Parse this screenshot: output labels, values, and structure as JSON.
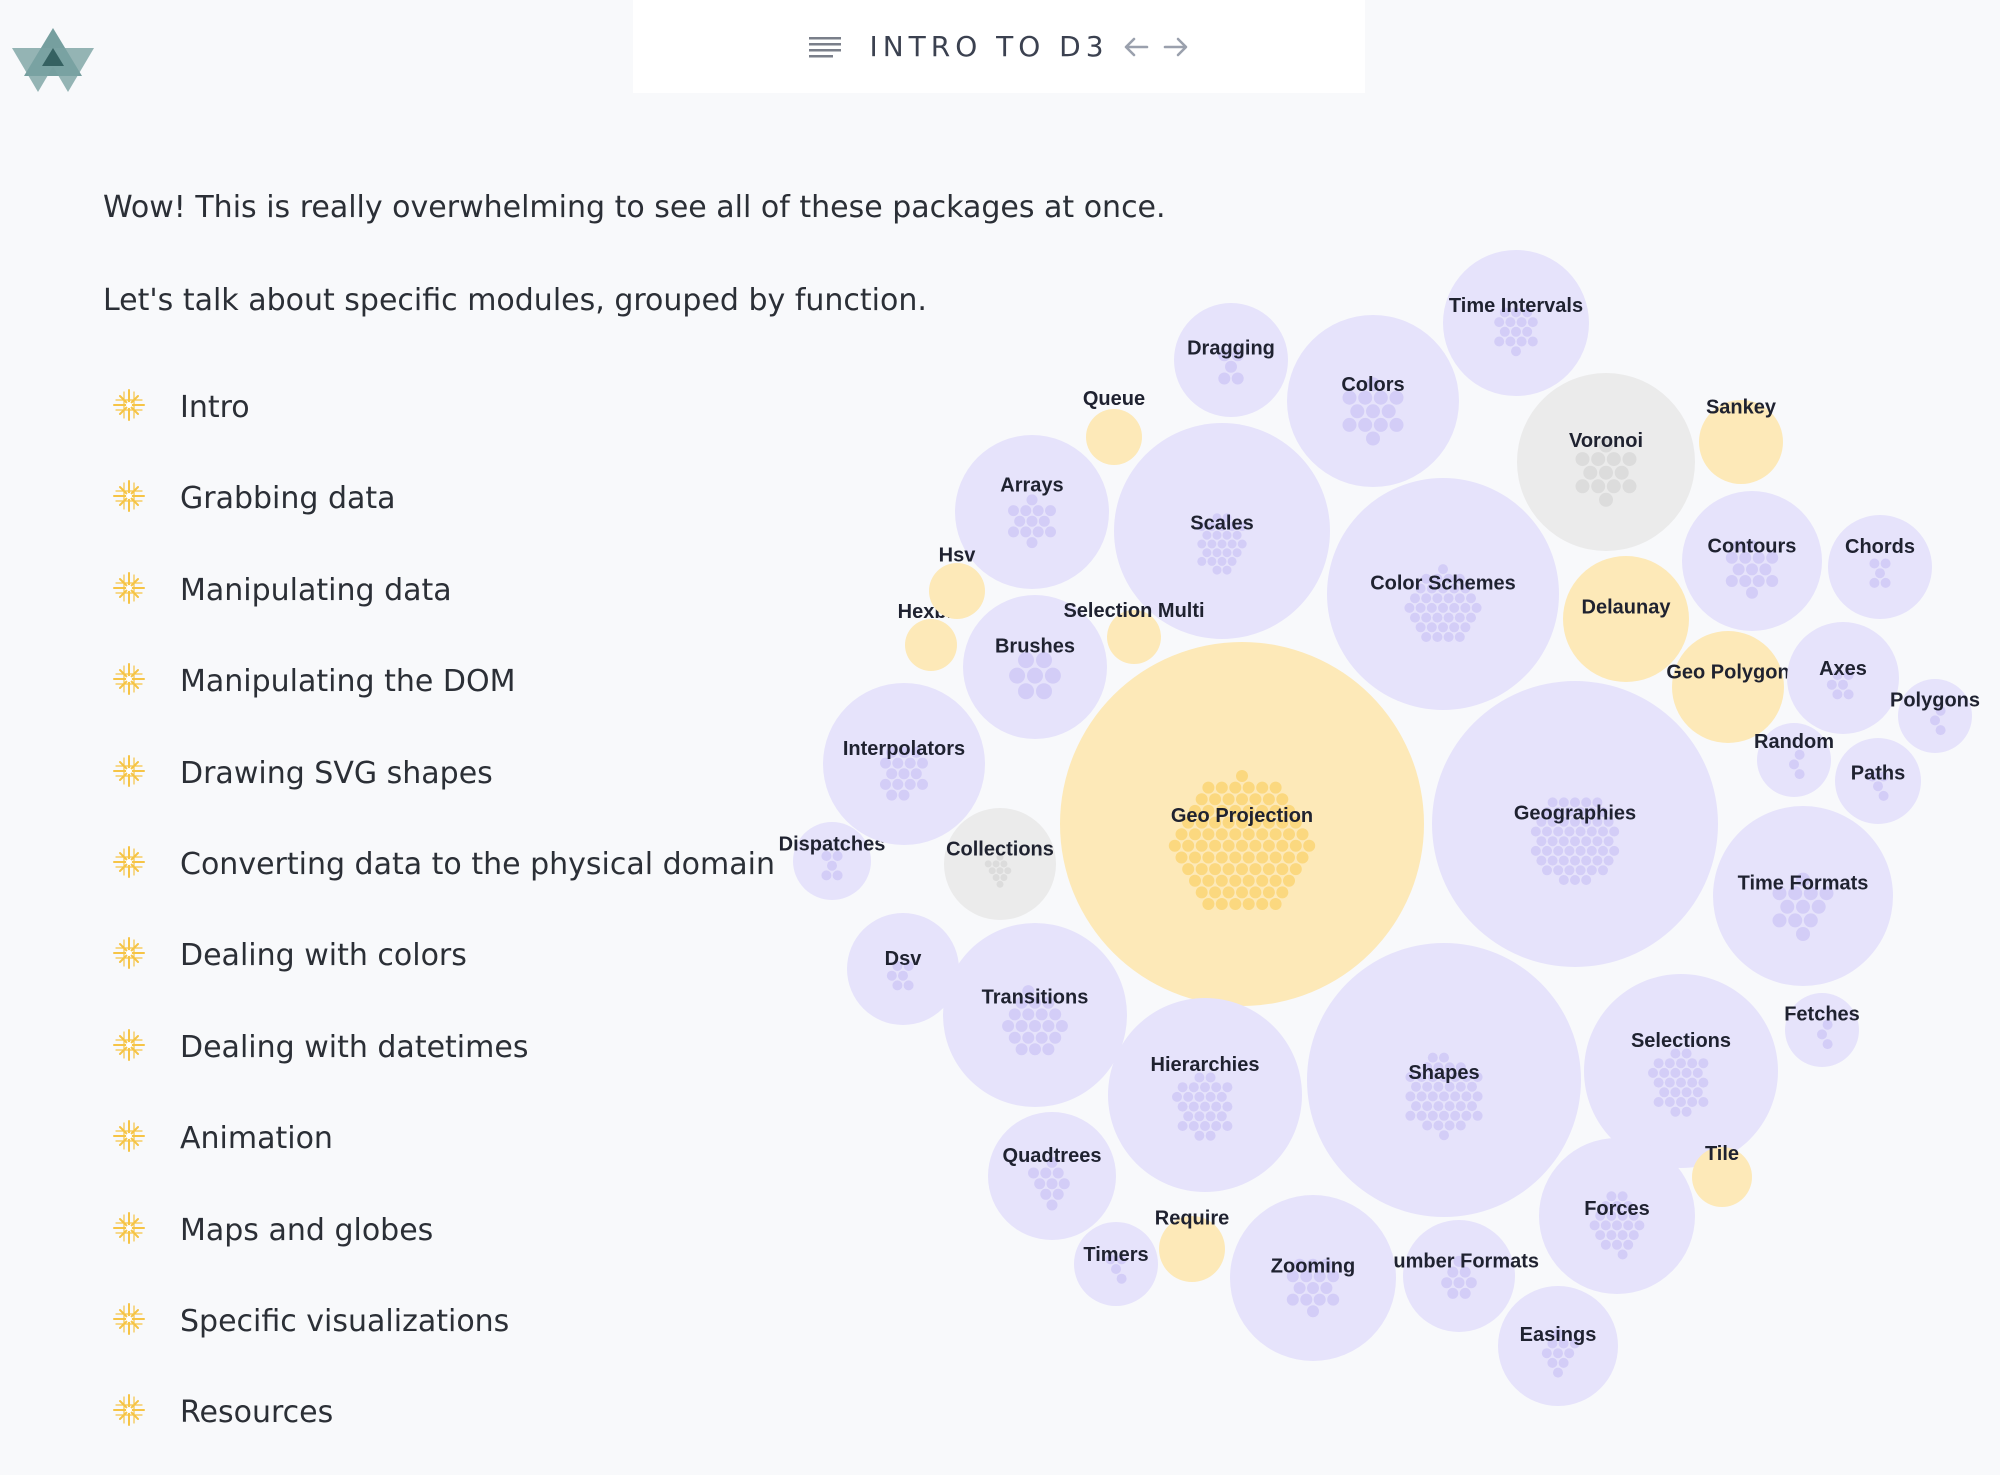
{
  "header": {
    "title": "INTRO TO D3",
    "menu_icon": "menu-lines-icon",
    "prev_icon": "arrow-left-icon",
    "next_icon": "arrow-right-icon"
  },
  "intro": {
    "line1": "Wow! This is really overwhelming to see all of these packages at once.",
    "line2": "Let's talk about specific modules, grouped by function."
  },
  "toc": [
    "Intro",
    "Grabbing data",
    "Manipulating data",
    "Manipulating the DOM",
    "Drawing SVG shapes",
    "Converting data to the physical domain",
    "Dealing with colors",
    "Dealing with datetimes",
    "Animation",
    "Maps and globes",
    "Specific visualizations",
    "Resources"
  ],
  "colors": {
    "purple_bubble": "#e6e3fb",
    "purple_dot": "#d3cdf7",
    "yellow_bubble": "#fde9b8",
    "yellow_dot": "#fbd87f",
    "gray_bubble": "#ebebeb",
    "gray_dot": "#dcdcdc",
    "star": "#f6c445"
  },
  "bubbles": [
    {
      "name": "Geo Projection",
      "color": "yellow"
    },
    {
      "name": "Geographies",
      "color": "purple"
    },
    {
      "name": "Shapes",
      "color": "purple"
    },
    {
      "name": "Color Schemes",
      "color": "purple"
    },
    {
      "name": "Scales",
      "color": "purple"
    },
    {
      "name": "Colors",
      "color": "purple"
    },
    {
      "name": "Time Intervals",
      "color": "purple"
    },
    {
      "name": "Dragging",
      "color": "purple"
    },
    {
      "name": "Queue",
      "color": "yellow"
    },
    {
      "name": "Arrays",
      "color": "purple"
    },
    {
      "name": "Voronoi",
      "color": "gray"
    },
    {
      "name": "Sankey",
      "color": "yellow"
    },
    {
      "name": "Contours",
      "color": "purple"
    },
    {
      "name": "Chords",
      "color": "purple"
    },
    {
      "name": "Delaunay",
      "color": "yellow"
    },
    {
      "name": "Geo Polygon",
      "color": "yellow"
    },
    {
      "name": "Axes",
      "color": "purple"
    },
    {
      "name": "Polygons",
      "color": "purple"
    },
    {
      "name": "Random",
      "color": "purple"
    },
    {
      "name": "Paths",
      "color": "purple"
    },
    {
      "name": "Time Formats",
      "color": "purple"
    },
    {
      "name": "Fetches",
      "color": "purple"
    },
    {
      "name": "Selections",
      "color": "purple"
    },
    {
      "name": "Tile",
      "color": "yellow"
    },
    {
      "name": "Forces",
      "color": "purple"
    },
    {
      "name": "Easings",
      "color": "purple"
    },
    {
      "name": "Number Formats",
      "color": "purple"
    },
    {
      "name": "Zooming",
      "color": "purple"
    },
    {
      "name": "Require",
      "color": "yellow"
    },
    {
      "name": "Timers",
      "color": "purple"
    },
    {
      "name": "Quadtrees",
      "color": "purple"
    },
    {
      "name": "Hierarchies",
      "color": "purple"
    },
    {
      "name": "Transitions",
      "color": "purple"
    },
    {
      "name": "Dsv",
      "color": "purple"
    },
    {
      "name": "Dispatches",
      "color": "purple"
    },
    {
      "name": "Collections",
      "color": "gray"
    },
    {
      "name": "Interpolators",
      "color": "purple"
    },
    {
      "name": "Hexbin",
      "color": "yellow"
    },
    {
      "name": "Hsv",
      "color": "yellow"
    },
    {
      "name": "Brushes",
      "color": "purple"
    },
    {
      "name": "Selection Multi",
      "color": "yellow"
    }
  ]
}
